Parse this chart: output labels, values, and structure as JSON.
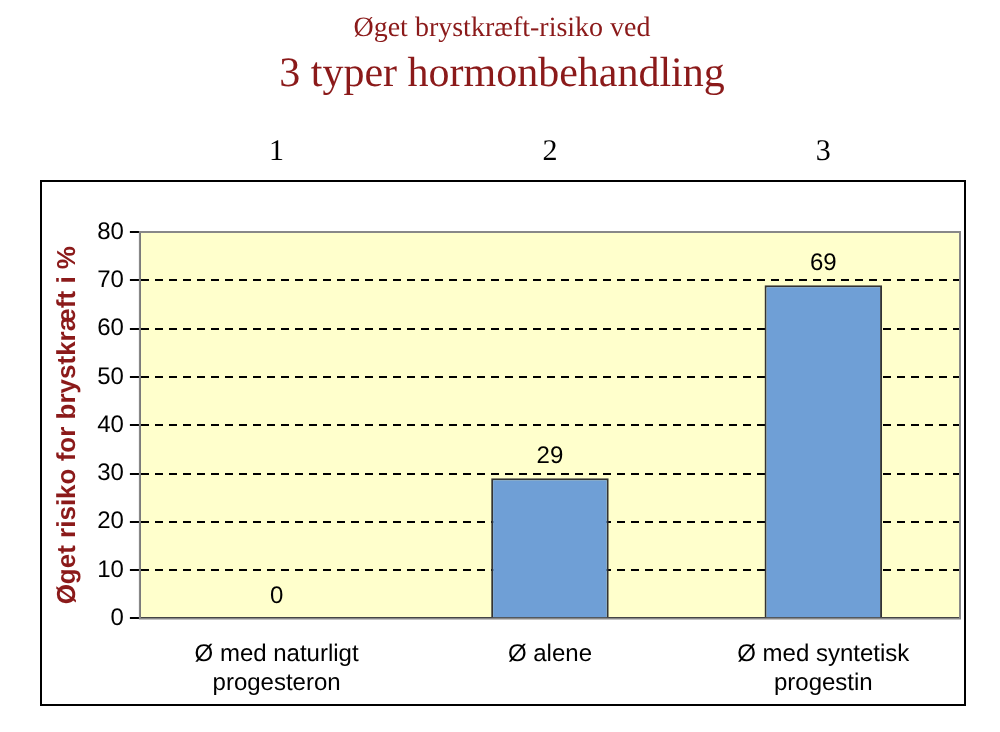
{
  "chart_data": {
    "type": "bar",
    "title": "Øget brystkræft-risiko ved",
    "subtitle": "3 typer hormonbehandling",
    "ylabel": "Øget risiko for brystkræft i %",
    "categories": [
      "Ø med naturligt progesteron",
      "Ø alene",
      "Ø med syntetisk progestin"
    ],
    "values": [
      0,
      29,
      69
    ],
    "color": "#6f9fd6",
    "ylim": [
      0,
      80
    ],
    "yticks": [
      0,
      10,
      20,
      30,
      40,
      50,
      60,
      70,
      80
    ],
    "grid": "y",
    "data_labels": true,
    "legend": false,
    "annotations": [
      "1",
      "2",
      "3"
    ]
  }
}
